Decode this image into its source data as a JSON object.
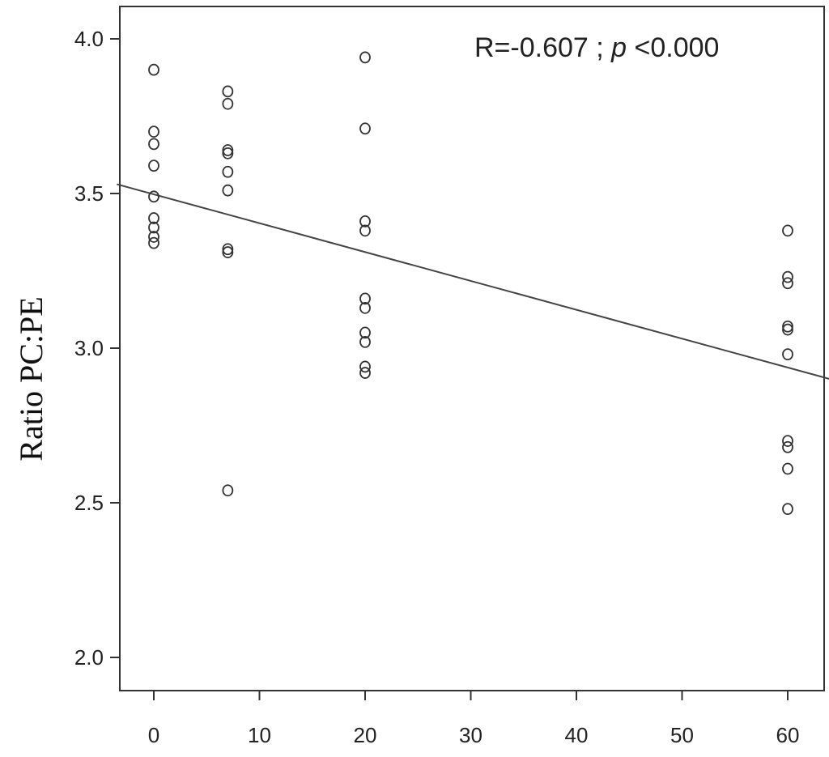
{
  "chart_data": {
    "type": "scatter",
    "title": "",
    "xlabel": "",
    "ylabel": "Ratio PC:PE",
    "xlim": [
      -3.5,
      64
    ],
    "ylim": [
      1.8,
      4.1
    ],
    "x_ticks": [
      0,
      10,
      20,
      30,
      40,
      50,
      60
    ],
    "y_ticks": [
      2.0,
      2.5,
      3.0,
      3.5,
      4.0
    ],
    "y_tick_labels": [
      "2.0",
      "2.5",
      "3.0",
      "3.5",
      "4.0"
    ],
    "grid": false,
    "legend": "none",
    "annotation": {
      "prefix": "R=-0.607 ; ",
      "italic": "p",
      "suffix": " <0.000"
    },
    "regression_line": {
      "x": [
        -3.5,
        64
      ],
      "y": [
        3.53,
        2.9
      ]
    },
    "series": [
      {
        "points": [
          {
            "x": 0,
            "y": 3.9
          },
          {
            "x": 0,
            "y": 3.7
          },
          {
            "x": 0,
            "y": 3.66
          },
          {
            "x": 0,
            "y": 3.59
          },
          {
            "x": 0,
            "y": 3.49
          },
          {
            "x": 0,
            "y": 3.42
          },
          {
            "x": 0,
            "y": 3.39
          },
          {
            "x": 0,
            "y": 3.36
          },
          {
            "x": 0,
            "y": 3.34
          },
          {
            "x": 7,
            "y": 3.83
          },
          {
            "x": 7,
            "y": 3.79
          },
          {
            "x": 7,
            "y": 3.64
          },
          {
            "x": 7,
            "y": 3.63
          },
          {
            "x": 7,
            "y": 3.57
          },
          {
            "x": 7,
            "y": 3.51
          },
          {
            "x": 7,
            "y": 3.32
          },
          {
            "x": 7,
            "y": 3.31
          },
          {
            "x": 7,
            "y": 2.54
          },
          {
            "x": 20,
            "y": 3.94
          },
          {
            "x": 20,
            "y": 3.71
          },
          {
            "x": 20,
            "y": 3.41
          },
          {
            "x": 20,
            "y": 3.38
          },
          {
            "x": 20,
            "y": 3.16
          },
          {
            "x": 20,
            "y": 3.13
          },
          {
            "x": 20,
            "y": 3.05
          },
          {
            "x": 20,
            "y": 3.02
          },
          {
            "x": 20,
            "y": 2.94
          },
          {
            "x": 20,
            "y": 2.92
          },
          {
            "x": 60,
            "y": 3.38
          },
          {
            "x": 60,
            "y": 3.23
          },
          {
            "x": 60,
            "y": 3.21
          },
          {
            "x": 60,
            "y": 3.07
          },
          {
            "x": 60,
            "y": 3.06
          },
          {
            "x": 60,
            "y": 2.98
          },
          {
            "x": 60,
            "y": 2.7
          },
          {
            "x": 60,
            "y": 2.68
          },
          {
            "x": 60,
            "y": 2.61
          },
          {
            "x": 60,
            "y": 2.48
          }
        ]
      }
    ]
  }
}
